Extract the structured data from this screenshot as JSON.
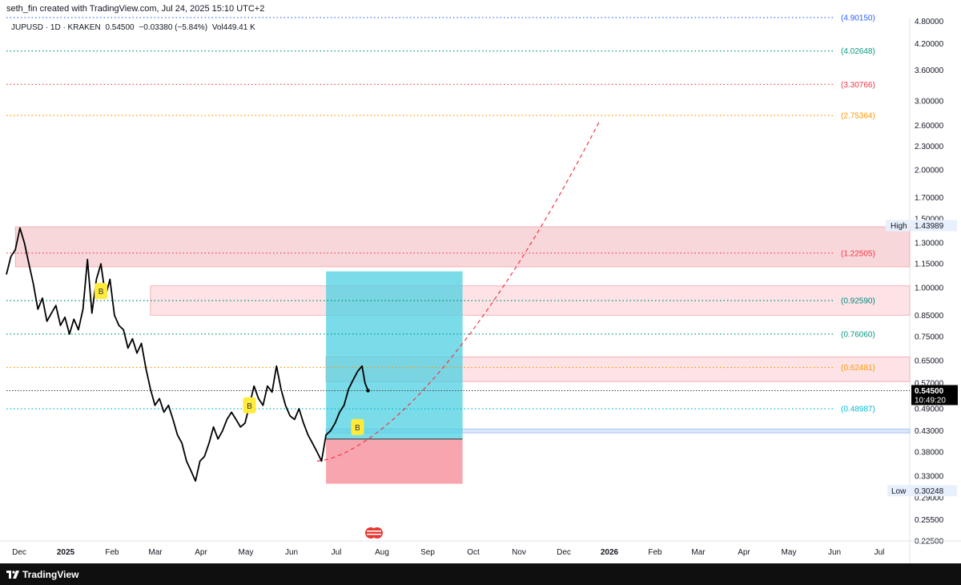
{
  "header": {
    "credit": "seth_fin created with TradingView.com, Jul 24, 2025 15:10 UTC+2"
  },
  "symbol_info": {
    "symbol": "JUPUSD · 1D · KRAKEN",
    "last": "0.54500",
    "change": "−0.03380 (−5.84%)",
    "volume": "Vol449.41 K"
  },
  "footer": {
    "brand": "TradingView"
  },
  "colors": {
    "price_line": "#000000",
    "fib_blue": "#2962ff",
    "fib_green": "#089981",
    "fib_red": "#f23645",
    "fib_orange": "#ff9800",
    "fib_teal": "#00bcd4",
    "zone_pink": "#f8d7da",
    "target_zone": "#4dd0e1",
    "stop_zone": "#f7a1ab",
    "curve_red": "#f23645",
    "badge_yellow": "#ffeb3b"
  },
  "chart_data": {
    "type": "line",
    "title": "JUPUSD · 1D · KRAKEN",
    "y_scale": "log",
    "ylim": [
      0.225,
      4.9
    ],
    "y_ticks": [
      "4.80000",
      "4.20000",
      "3.60000",
      "3.00000",
      "2.60000",
      "2.30000",
      "2.00000",
      "1.70000",
      "1.50000",
      "1.30000",
      "1.15000",
      "1.00000",
      "0.85000",
      "0.75000",
      "0.65000",
      "0.57000",
      "0.49000",
      "0.43000",
      "0.38000",
      "0.33000",
      "0.29000",
      "0.25500",
      "0.22500"
    ],
    "x_ticks": [
      "Dec",
      "2025",
      "Feb",
      "Mar",
      "Apr",
      "May",
      "Jun",
      "Jul",
      "Aug",
      "Sep",
      "Oct",
      "Nov",
      "Dec",
      "2026",
      "Feb",
      "Mar",
      "Apr",
      "May",
      "Jun",
      "Jul"
    ],
    "series": [
      {
        "x": [
          "2024-11-25",
          "2024-11-28",
          "2024-12-01",
          "2024-12-04",
          "2024-12-07",
          "2024-12-10",
          "2024-12-13",
          "2024-12-16",
          "2024-12-19",
          "2024-12-22",
          "2024-12-25",
          "2024-12-28",
          "2024-12-31",
          "2025-01-03",
          "2025-01-06",
          "2025-01-09",
          "2025-01-12",
          "2025-01-15",
          "2025-01-18",
          "2025-01-21",
          "2025-01-24",
          "2025-01-27",
          "2025-01-30",
          "2025-02-02",
          "2025-02-05",
          "2025-02-08",
          "2025-02-11",
          "2025-02-14",
          "2025-02-17",
          "2025-02-20",
          "2025-02-23",
          "2025-02-26",
          "2025-03-01",
          "2025-03-04",
          "2025-03-07",
          "2025-03-10",
          "2025-03-13",
          "2025-03-16",
          "2025-03-19",
          "2025-03-22",
          "2025-03-25",
          "2025-03-28",
          "2025-03-31",
          "2025-04-03",
          "2025-04-06",
          "2025-04-09",
          "2025-04-12",
          "2025-04-15",
          "2025-04-18",
          "2025-04-21",
          "2025-04-24",
          "2025-04-27",
          "2025-04-30",
          "2025-05-03",
          "2025-05-06",
          "2025-05-09",
          "2025-05-12",
          "2025-05-15",
          "2025-05-18",
          "2025-05-21",
          "2025-05-24",
          "2025-05-27",
          "2025-05-30",
          "2025-06-02",
          "2025-06-05",
          "2025-06-08",
          "2025-06-11",
          "2025-06-14",
          "2025-06-17",
          "2025-06-20",
          "2025-06-23",
          "2025-06-26",
          "2025-06-29",
          "2025-07-02",
          "2025-07-05",
          "2025-07-08",
          "2025-07-11",
          "2025-07-14",
          "2025-07-17",
          "2025-07-20",
          "2025-07-22",
          "2025-07-24"
        ],
        "values": [
          1.08,
          1.2,
          1.25,
          1.42,
          1.3,
          1.15,
          1.02,
          0.88,
          0.94,
          0.82,
          0.86,
          0.9,
          0.8,
          0.84,
          0.76,
          0.83,
          0.78,
          0.88,
          1.18,
          0.86,
          1.05,
          1.15,
          0.95,
          1.05,
          0.85,
          0.8,
          0.78,
          0.7,
          0.74,
          0.68,
          0.72,
          0.62,
          0.55,
          0.5,
          0.52,
          0.48,
          0.5,
          0.46,
          0.42,
          0.4,
          0.36,
          0.34,
          0.32,
          0.36,
          0.37,
          0.4,
          0.44,
          0.41,
          0.43,
          0.46,
          0.48,
          0.46,
          0.44,
          0.45,
          0.5,
          0.56,
          0.52,
          0.5,
          0.56,
          0.54,
          0.63,
          0.55,
          0.5,
          0.47,
          0.46,
          0.49,
          0.45,
          0.42,
          0.4,
          0.38,
          0.36,
          0.42,
          0.43,
          0.45,
          0.48,
          0.5,
          0.55,
          0.58,
          0.61,
          0.63,
          0.57,
          0.545
        ]
      }
    ],
    "fib_levels": [
      {
        "label": "(4.90150)",
        "value": 4.9015,
        "color": "#2962ff"
      },
      {
        "label": "(4.02648)",
        "value": 4.02648,
        "color": "#089981"
      },
      {
        "label": "(3.30766)",
        "value": 3.30766,
        "color": "#f23645"
      },
      {
        "label": "(2.75364)",
        "value": 2.75364,
        "color": "#ff9800"
      },
      {
        "label": "(1.22505)",
        "value": 1.22505,
        "color": "#f23645"
      },
      {
        "label": "(0.92590)",
        "value": 0.9259,
        "color": "#00897b"
      },
      {
        "label": "(0.76060)",
        "value": 0.7606,
        "color": "#089981"
      },
      {
        "label": "(0.62481)",
        "value": 0.62481,
        "color": "#ff9800"
      },
      {
        "label": "(0.48987)",
        "value": 0.48987,
        "color": "#00bcd4"
      }
    ],
    "markers": {
      "high_label": "High",
      "high_value": "1.43989",
      "low_label": "Low",
      "low_value": "0.30248",
      "last_price": "0.54500",
      "countdown": "10:49:20",
      "buy_badge": "B"
    },
    "zones": {
      "resistance_top": [
        1.13,
        1.43
      ],
      "resistance_mid": [
        0.85,
        1.01
      ],
      "resistance_low": [
        0.575,
        0.665
      ],
      "support_band": [
        0.425,
        0.435
      ],
      "target": {
        "from": "2025-06-26",
        "to": "2025-09-25",
        "top": 1.1,
        "bottom": 0.41
      },
      "stop": {
        "from": "2025-06-26",
        "to": "2025-09-25",
        "top": 0.41,
        "bottom": 0.315
      }
    },
    "projection_curve": {
      "start": "2025-06-20",
      "end": "2025-12-25",
      "start_value": 0.36,
      "end_value": 2.65
    },
    "grid": false,
    "legend": "none"
  }
}
